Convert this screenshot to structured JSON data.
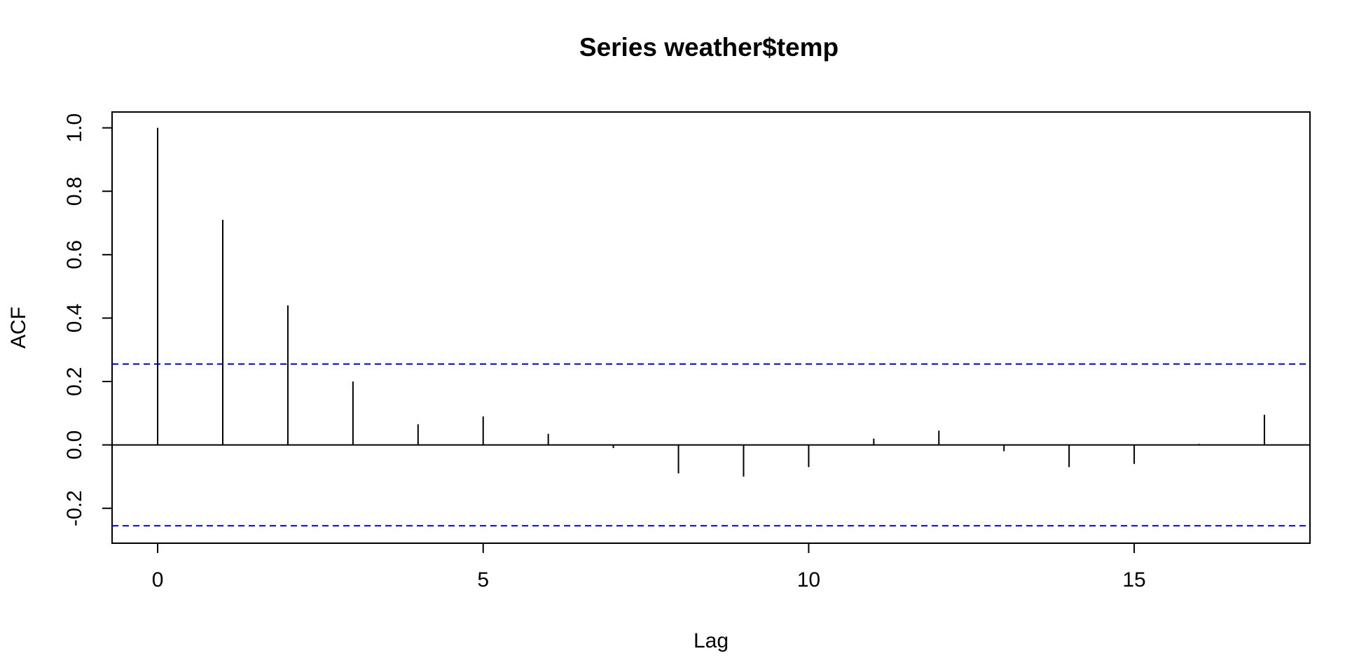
{
  "chart_data": {
    "type": "bar",
    "subtype": "acf-stem",
    "title": "Series  weather$temp",
    "xlabel": "Lag",
    "ylabel": "ACF",
    "x": [
      0,
      1,
      2,
      3,
      4,
      5,
      6,
      7,
      8,
      9,
      10,
      11,
      12,
      13,
      14,
      15,
      16,
      17
    ],
    "values": [
      1.0,
      0.71,
      0.44,
      0.2,
      0.065,
      0.09,
      0.035,
      -0.01,
      -0.09,
      -0.1,
      -0.07,
      0.02,
      0.045,
      -0.02,
      -0.07,
      -0.06,
      0.003,
      0.095
    ],
    "xlim": [
      -0.7,
      17.7
    ],
    "ylim": [
      -0.31,
      1.05
    ],
    "xticks": [
      0,
      5,
      10,
      15
    ],
    "xtick_labels": [
      "0",
      "5",
      "10",
      "15"
    ],
    "yticks": [
      -0.2,
      0.0,
      0.2,
      0.4,
      0.6,
      0.8,
      1.0
    ],
    "ytick_labels": [
      "-0.2",
      "0.0",
      "0.2",
      "0.4",
      "0.6",
      "0.8",
      "1.0"
    ],
    "confidence_bound": 0.255,
    "confidence_color": "#0000ff",
    "stem_color": "#000000",
    "grid": false
  }
}
